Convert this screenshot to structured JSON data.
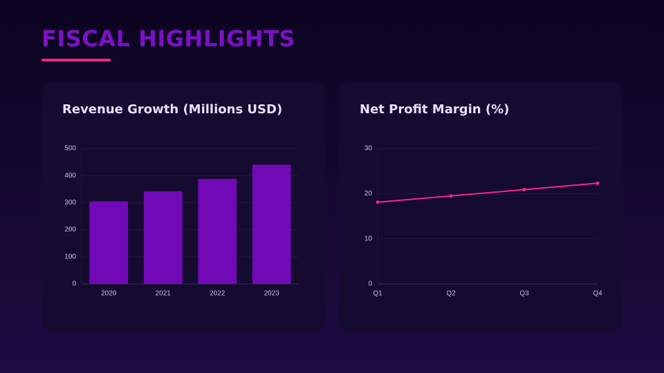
{
  "title": "FISCAL HIGHLIGHTS",
  "chart_data": [
    {
      "type": "bar",
      "title": "Revenue Growth (Millions USD)",
      "categories": [
        "2020",
        "2021",
        "2022",
        "2023"
      ],
      "values": [
        305,
        342,
        388,
        440
      ],
      "color": "#7209b7",
      "ylim": [
        0,
        500
      ],
      "yticks": [
        0,
        100,
        200,
        300,
        400,
        500
      ],
      "grid": true
    },
    {
      "type": "line",
      "title": "Net Profit Margin (%)",
      "categories": [
        "Q1",
        "Q2",
        "Q3",
        "Q4"
      ],
      "values": [
        18.1,
        19.5,
        20.9,
        22.3
      ],
      "color": "#f72585",
      "ylim": [
        0,
        30
      ],
      "yticks": [
        0,
        10,
        20,
        30
      ],
      "grid": true
    }
  ]
}
